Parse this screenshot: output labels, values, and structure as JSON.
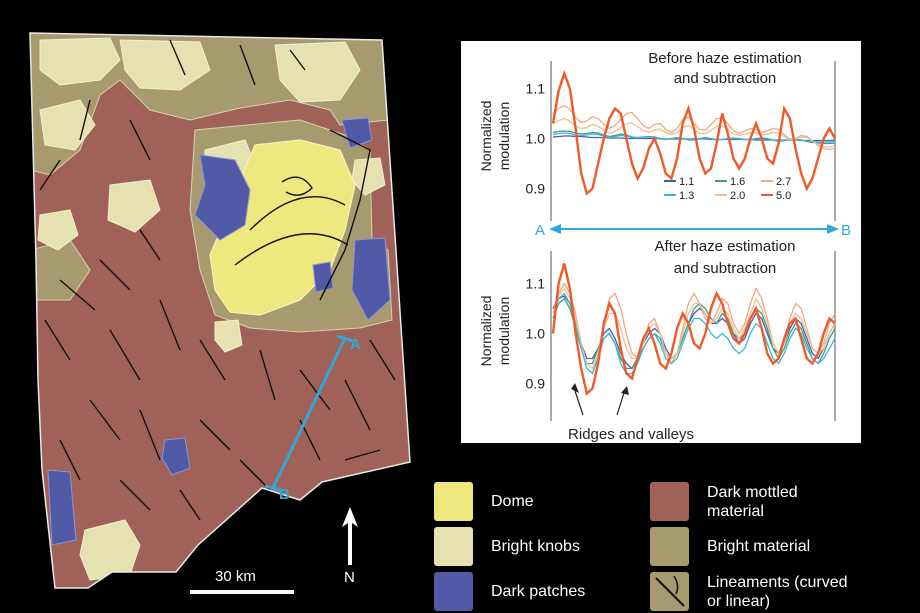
{
  "map": {
    "profile_start_label": "A",
    "profile_end_label": "B",
    "scale_label": "30 km",
    "north_label": "N"
  },
  "colors": {
    "background": "#000000",
    "dome": "#eee87e",
    "bright_knobs": "#e6e1b0",
    "dark_patches": "#505aa6",
    "dark_mottled_material": "#a06258",
    "bright_material": "#a69a6e",
    "lineament": "#111111",
    "profile_line": "#33a8d8"
  },
  "legend": {
    "dome": "Dome",
    "bright_knobs": "Bright knobs",
    "dark_patches": "Dark patches",
    "dark_mottled_line1": "Dark mottled",
    "dark_mottled_line2": "material",
    "bright_material": "Bright material",
    "lineaments_line1": "Lineaments (curved",
    "lineaments_line2": "or linear)"
  },
  "chart_data": [
    {
      "type": "line",
      "title": "Before haze estimation",
      "subtitle": "and subtraction",
      "ylabel_line1": "Normalized",
      "ylabel_line2": "modulation",
      "yticks": [
        "1.1",
        "1.0",
        "0.9"
      ],
      "ylim": [
        0.875,
        1.135
      ],
      "x": [
        0,
        0.02,
        0.04,
        0.06,
        0.08,
        0.1,
        0.12,
        0.14,
        0.16,
        0.18,
        0.2,
        0.22,
        0.24,
        0.26,
        0.28,
        0.3,
        0.32,
        0.34,
        0.36,
        0.38,
        0.4,
        0.42,
        0.44,
        0.46,
        0.48,
        0.5,
        0.52,
        0.54,
        0.56,
        0.58,
        0.6,
        0.62,
        0.64,
        0.66,
        0.68,
        0.7,
        0.72,
        0.74,
        0.76,
        0.78,
        0.8,
        0.82,
        0.84,
        0.86,
        0.88,
        0.9,
        0.92,
        0.94,
        0.96,
        0.98,
        1.0
      ],
      "series": [
        {
          "name": "1.1",
          "color": "#4a5ab0",
          "values": [
            1.003,
            1.004,
            1.005,
            1.005,
            1.004,
            1.004,
            1.003,
            1.002,
            1.002,
            1.002,
            1.001,
            1.001,
            1.001,
            1.0,
            1.0,
            1.0,
            1.0,
            1.0,
            1.0,
            0.999,
            0.999,
            0.999,
            0.999,
            0.999,
            0.999,
            0.999,
            0.999,
            0.999,
            0.998,
            0.998,
            0.998,
            0.998,
            0.998,
            0.998,
            0.998,
            0.998,
            0.997,
            0.997,
            0.997,
            0.997,
            0.997,
            0.997,
            0.997,
            0.997,
            0.996,
            0.996,
            0.996,
            0.996,
            0.996,
            0.996,
            0.997
          ]
        },
        {
          "name": "1.6",
          "color": "#3aa088",
          "values": [
            1.012,
            1.014,
            1.015,
            1.014,
            1.011,
            1.009,
            1.01,
            1.012,
            1.011,
            1.007,
            1.004,
            1.006,
            1.009,
            1.007,
            1.003,
            1.002,
            1.003,
            1.004,
            1.003,
            1.0,
            0.998,
            1.0,
            1.002,
            1.0,
            0.997,
            0.997,
            1.0,
            1.002,
            1.0,
            0.998,
            0.998,
            1.0,
            1.001,
            1.0,
            0.998,
            0.998,
            1.0,
            1.001,
            1.0,
            0.997,
            0.994,
            0.996,
            0.999,
            0.999,
            0.997,
            0.994,
            0.992,
            0.991,
            0.99,
            0.99,
            0.991
          ]
        },
        {
          "name": "2.7",
          "color": "#f2a880",
          "values": [
            1.05,
            1.06,
            1.066,
            1.058,
            1.042,
            1.032,
            1.035,
            1.044,
            1.04,
            1.028,
            1.02,
            1.026,
            1.038,
            1.05,
            1.052,
            1.04,
            1.026,
            1.02,
            1.028,
            1.03,
            1.018,
            1.012,
            1.02,
            1.038,
            1.043,
            1.03,
            1.018,
            1.017,
            1.028,
            1.04,
            1.04,
            1.03,
            1.015,
            1.01,
            1.015,
            1.02,
            1.018,
            1.012,
            1.015,
            1.02,
            1.018,
            1.008,
            0.998,
            1.0,
            1.006,
            1.004,
            0.995,
            0.986,
            0.98,
            0.978,
            0.98
          ]
        },
        {
          "name": "1.3",
          "color": "#3ab8d8",
          "values": [
            1.008,
            1.01,
            1.011,
            1.01,
            1.007,
            1.006,
            1.007,
            1.009,
            1.008,
            1.005,
            1.002,
            1.004,
            1.006,
            1.005,
            1.002,
            1.001,
            1.002,
            1.003,
            1.002,
            0.999,
            0.998,
            0.999,
            1.001,
            1.0,
            0.998,
            0.997,
            0.999,
            1.001,
            0.999,
            0.998,
            0.998,
            0.999,
            1.0,
            0.999,
            0.998,
            0.998,
            0.999,
            1.0,
            0.999,
            0.997,
            0.995,
            0.997,
            0.998,
            0.998,
            0.997,
            0.995,
            0.994,
            0.993,
            0.993,
            0.993,
            0.994
          ]
        },
        {
          "name": "2.0",
          "color": "#f0c090",
          "values": [
            1.03,
            1.036,
            1.04,
            1.035,
            1.025,
            1.02,
            1.022,
            1.028,
            1.025,
            1.016,
            1.01,
            1.014,
            1.022,
            1.03,
            1.031,
            1.024,
            1.016,
            1.012,
            1.017,
            1.019,
            1.012,
            1.008,
            1.012,
            1.022,
            1.026,
            1.018,
            1.01,
            1.01,
            1.016,
            1.024,
            1.024,
            1.018,
            1.009,
            1.006,
            1.009,
            1.012,
            1.011,
            1.007,
            1.009,
            1.012,
            1.011,
            1.004,
            0.998,
            0.999,
            1.003,
            1.002,
            0.995,
            0.988,
            0.984,
            0.983,
            0.985
          ]
        },
        {
          "name": "5.0",
          "color": "#f05a28",
          "values": [
            1.03,
            1.095,
            1.13,
            1.1,
            1.02,
            0.93,
            0.89,
            0.9,
            0.95,
            1.0,
            1.04,
            1.06,
            1.05,
            1.0,
            0.95,
            0.92,
            0.94,
            0.98,
            1.0,
            0.97,
            0.93,
            0.92,
            0.96,
            1.03,
            1.06,
            1.02,
            0.96,
            0.93,
            0.94,
            0.99,
            1.05,
            1.01,
            0.96,
            0.94,
            0.96,
            1.0,
            1.03,
            1.0,
            0.96,
            0.95,
            0.99,
            1.06,
            1.04,
            0.98,
            0.93,
            0.9,
            0.92,
            0.96,
            1.0,
            1.02,
            1.0
          ]
        }
      ]
    },
    {
      "type": "line",
      "title": "After haze estimation",
      "subtitle": "and subtraction",
      "ylabel_line1": "Normalized",
      "ylabel_line2": "modulation",
      "yticks": [
        "1.1",
        "1.0",
        "0.9"
      ],
      "ylim": [
        0.865,
        1.145
      ],
      "annotation": "Ridges and valleys",
      "x": [
        0,
        0.02,
        0.04,
        0.06,
        0.08,
        0.1,
        0.12,
        0.14,
        0.16,
        0.18,
        0.2,
        0.22,
        0.24,
        0.26,
        0.28,
        0.3,
        0.32,
        0.34,
        0.36,
        0.38,
        0.4,
        0.42,
        0.44,
        0.46,
        0.48,
        0.5,
        0.52,
        0.54,
        0.56,
        0.58,
        0.6,
        0.62,
        0.64,
        0.66,
        0.68,
        0.7,
        0.72,
        0.74,
        0.76,
        0.78,
        0.8,
        0.82,
        0.84,
        0.86,
        0.88,
        0.9,
        0.92,
        0.94,
        0.96,
        0.98,
        1.0
      ],
      "series": [
        {
          "name": "1.1",
          "color": "#4a5ab0",
          "values": [
            1.05,
            1.07,
            1.075,
            1.06,
            1.03,
            0.98,
            0.95,
            0.95,
            0.97,
            1.0,
            1.01,
            0.99,
            0.96,
            0.94,
            0.93,
            0.95,
            0.98,
            1.0,
            1.01,
            1.0,
            0.97,
            0.95,
            0.96,
            0.99,
            1.02,
            1.04,
            1.05,
            1.04,
            1.02,
            1.02,
            1.03,
            1.02,
            1.0,
            0.98,
            0.99,
            1.02,
            1.04,
            1.03,
            1.0,
            0.97,
            0.96,
            0.98,
            1.01,
            1.03,
            1.02,
            0.99,
            0.96,
            0.95,
            0.97,
            1.0,
            1.02
          ]
        },
        {
          "name": "1.6",
          "color": "#3aa088",
          "values": [
            1.03,
            1.06,
            1.07,
            1.05,
            1.01,
            0.97,
            0.94,
            0.94,
            0.97,
            0.99,
            1.0,
            0.98,
            0.95,
            0.93,
            0.93,
            0.95,
            0.97,
            0.99,
            1.0,
            0.99,
            0.96,
            0.95,
            0.96,
            0.99,
            1.02,
            1.05,
            1.06,
            1.05,
            1.03,
            1.02,
            1.04,
            1.03,
            1.0,
            0.99,
            1.0,
            1.03,
            1.05,
            1.04,
            1.01,
            0.97,
            0.95,
            0.97,
            1.0,
            1.02,
            1.01,
            0.98,
            0.95,
            0.94,
            0.96,
            0.99,
            1.01
          ]
        },
        {
          "name": "2.7",
          "color": "#f2a880",
          "values": [
            1.04,
            1.08,
            1.1,
            1.08,
            1.04,
            0.98,
            0.93,
            0.92,
            0.96,
            1.02,
            1.07,
            1.08,
            1.05,
            1.0,
            0.96,
            0.95,
            0.98,
            1.02,
            1.03,
            1.0,
            0.96,
            0.94,
            0.96,
            1.01,
            1.06,
            1.08,
            1.06,
            1.03,
            1.02,
            1.04,
            1.07,
            1.06,
            1.02,
            1.0,
            1.02,
            1.06,
            1.09,
            1.07,
            1.03,
            0.98,
            0.96,
            0.99,
            1.03,
            1.06,
            1.05,
            1.01,
            0.97,
            0.96,
            0.98,
            1.02,
            1.04
          ]
        },
        {
          "name": "1.3",
          "color": "#3ab8d8",
          "values": [
            1.04,
            1.07,
            1.08,
            1.06,
            1.02,
            0.97,
            0.93,
            0.92,
            0.95,
            0.99,
            1.0,
            0.98,
            0.94,
            0.92,
            0.92,
            0.94,
            0.97,
            0.99,
            1.0,
            0.98,
            0.95,
            0.94,
            0.95,
            0.98,
            1.01,
            1.03,
            1.03,
            1.02,
            1.0,
            0.99,
            1.0,
            0.99,
            0.97,
            0.96,
            0.97,
            1.0,
            1.02,
            1.01,
            0.98,
            0.95,
            0.94,
            0.96,
            0.99,
            1.01,
            1.0,
            0.97,
            0.95,
            0.94,
            0.95,
            0.97,
            0.99
          ]
        },
        {
          "name": "2.0",
          "color": "#f0c090",
          "values": [
            1.04,
            1.075,
            1.09,
            1.07,
            1.03,
            0.98,
            0.94,
            0.93,
            0.96,
            1.01,
            1.04,
            1.04,
            1.01,
            0.97,
            0.95,
            0.95,
            0.98,
            1.01,
            1.02,
            1.0,
            0.96,
            0.95,
            0.96,
            1.0,
            1.04,
            1.06,
            1.06,
            1.04,
            1.02,
            1.03,
            1.05,
            1.04,
            1.01,
            0.99,
            1.01,
            1.04,
            1.07,
            1.05,
            1.02,
            0.98,
            0.96,
            0.98,
            1.02,
            1.04,
            1.03,
            1.0,
            0.97,
            0.96,
            0.97,
            1.0,
            1.02
          ]
        },
        {
          "name": "5.0",
          "color": "#f05a28",
          "values": [
            1.0,
            1.1,
            1.14,
            1.09,
            1.0,
            0.93,
            0.88,
            0.89,
            0.94,
            1.02,
            1.06,
            1.04,
            0.97,
            0.92,
            0.91,
            0.95,
            0.99,
            1.01,
            0.98,
            0.94,
            0.93,
            0.96,
            1.01,
            1.04,
            1.02,
            0.98,
            0.97,
            1.0,
            1.05,
            1.08,
            1.06,
            1.02,
            0.99,
            0.98,
            1.0,
            1.03,
            1.05,
            1.01,
            0.96,
            0.94,
            0.95,
            0.99,
            1.02,
            1.03,
            0.99,
            0.95,
            0.94,
            0.96,
            1.0,
            1.03,
            1.02
          ]
        }
      ]
    }
  ],
  "profile": {
    "start": "A",
    "end": "B"
  }
}
